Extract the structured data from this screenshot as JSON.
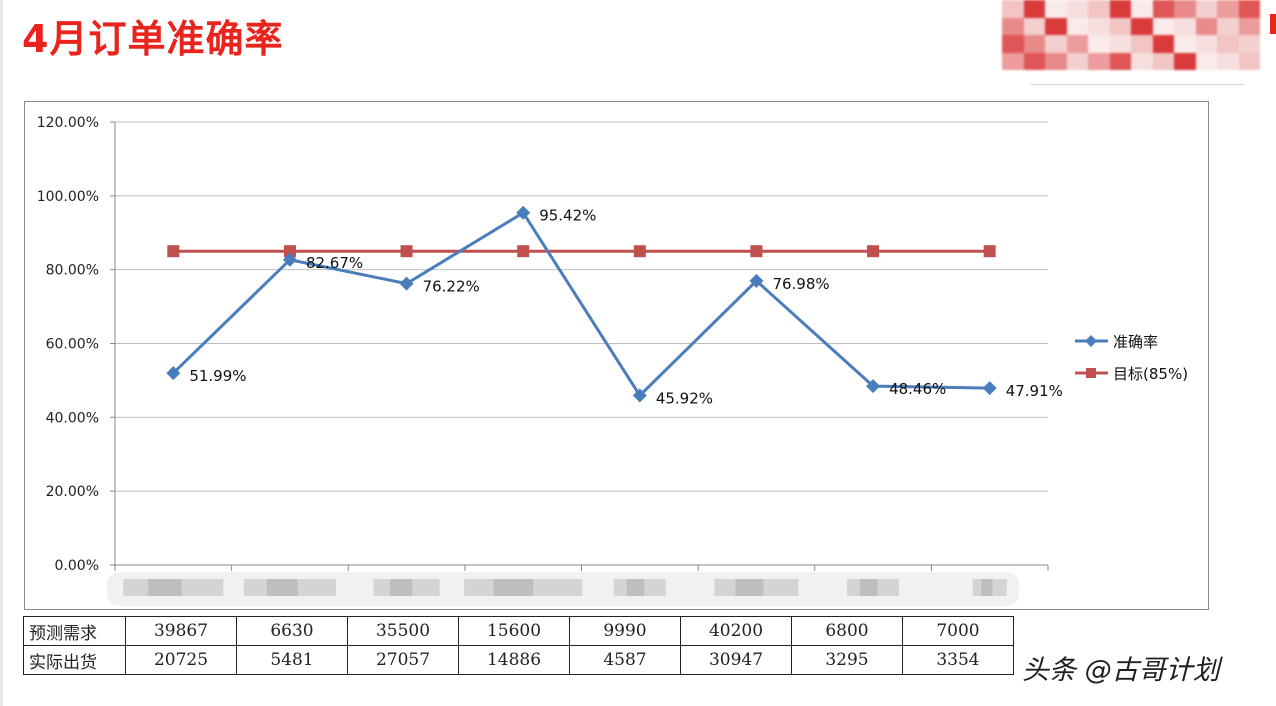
{
  "title": "4月订单准确率",
  "watermark": "头条 @古哥计划",
  "colors": {
    "title": "#e8241c",
    "accuracy": "#4a7dbb",
    "target": "#c0504d",
    "grid": "#bfbfbf"
  },
  "chart_data": {
    "type": "line",
    "title": "",
    "xlabel": "",
    "ylabel": "",
    "ylim": [
      0,
      1.2
    ],
    "yticks": [
      "0.00%",
      "20.00%",
      "40.00%",
      "60.00%",
      "80.00%",
      "100.00%",
      "120.00%"
    ],
    "ytick_values": [
      0,
      0.2,
      0.4,
      0.6,
      0.8,
      1.0,
      1.2
    ],
    "categories_count": 8,
    "legend_position": "right",
    "series": [
      {
        "name": "准确率",
        "marker": "diamond",
        "values": [
          0.5199,
          0.8267,
          0.7622,
          0.9542,
          0.4592,
          0.7698,
          0.4846,
          0.4791
        ],
        "labels": [
          "51.99%",
          "82.67%",
          "76.22%",
          "95.42%",
          "45.92%",
          "76.98%",
          "48.46%",
          "47.91%"
        ]
      },
      {
        "name": "目标(85%)",
        "marker": "square",
        "values": [
          0.85,
          0.85,
          0.85,
          0.85,
          0.85,
          0.85,
          0.85,
          0.85
        ]
      }
    ]
  },
  "table": {
    "rows": [
      {
        "label": "预测需求",
        "values": [
          "39867",
          "6630",
          "35500",
          "15600",
          "9990",
          "40200",
          "6800",
          "7000"
        ]
      },
      {
        "label": "实际出货",
        "values": [
          "20725",
          "5481",
          "27057",
          "14886",
          "4587",
          "30947",
          "3295",
          "3354"
        ]
      }
    ]
  }
}
